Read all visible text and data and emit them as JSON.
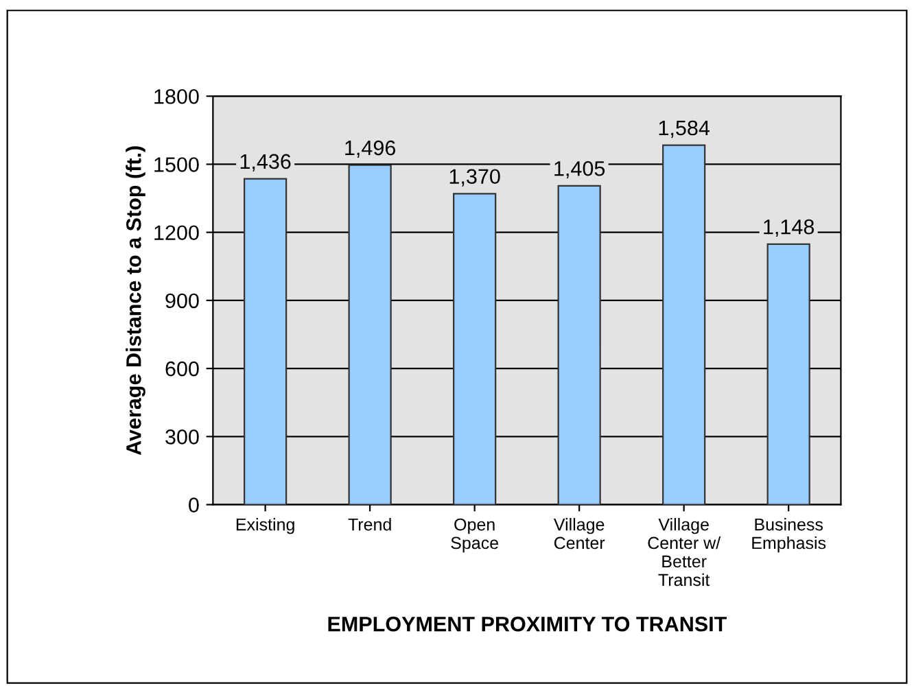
{
  "chart_data": {
    "type": "bar",
    "categories": [
      "Existing",
      "Trend",
      "Open\nSpace",
      "Village\nCenter",
      "Village\nCenter w/\nBetter\nTransit",
      "Business\nEmphasis"
    ],
    "values": [
      1436,
      1496,
      1370,
      1405,
      1584,
      1148
    ],
    "value_labels": [
      "1,436",
      "1,496",
      "1,370",
      "1,405",
      "1,584",
      "1,148"
    ],
    "color": "#99ccff",
    "xlabel": "EMPLOYMENT PROXIMITY TO TRANSIT",
    "ylabel": "Average Distance to a Stop (ft.)",
    "ylim": [
      0,
      1800
    ],
    "yticks": [
      0,
      300,
      600,
      900,
      1200,
      1500,
      1800
    ],
    "grid": "y",
    "legend": false
  }
}
